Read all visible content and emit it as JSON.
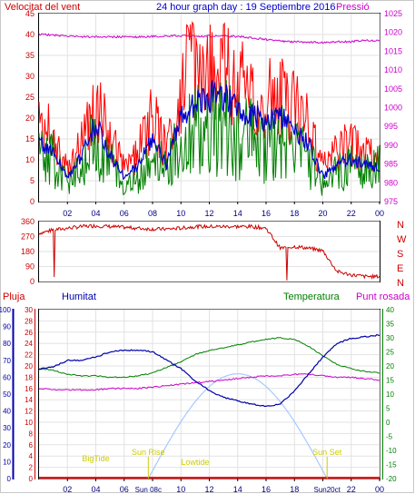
{
  "header": {
    "left_title": "Velocitat del vent",
    "center_title": "24 hour graph day : 19 Septiembre 2016",
    "right_title": "Pressió"
  },
  "bottom_labels": {
    "pluja": "Pluja",
    "humitat": "Humitat",
    "temperatura": "Temperatura",
    "punt_rosada": "Punt rosada"
  },
  "colors": {
    "wind_gust": "#ff0000",
    "wind_avg": "#0000cc",
    "wind_speed": "#008000",
    "pressure": "#cc00cc",
    "direction": "#cc0000",
    "humidity": "#0000aa",
    "temperature": "#008000",
    "dewpoint": "#cc00cc",
    "solar": "#a8c8ff",
    "astro": "#cccc00",
    "rain": "#ff0000",
    "title_red": "#cc0000",
    "title_blue": "#0000cc",
    "title_magenta": "#cc00cc"
  },
  "chart_data": [
    {
      "type": "line",
      "panel": "wind_pressure",
      "title": "Velocitat del vent",
      "x_ticks": [
        "02",
        "04",
        "06",
        "08",
        "10",
        "12",
        "14",
        "16",
        "18",
        "20",
        "22",
        "00"
      ],
      "left_axis": {
        "ylim": [
          0,
          45
        ],
        "ticks": [
          "0",
          "5",
          "10",
          "15",
          "20",
          "25",
          "30",
          "35",
          "40",
          "45"
        ]
      },
      "right_axis": {
        "label": "Pressió",
        "ylim": [
          975,
          1025
        ],
        "ticks": [
          "975",
          "980",
          "985",
          "990",
          "995",
          "1000",
          "1005",
          "1010",
          "1015",
          "1020",
          "1025"
        ]
      },
      "x_hours": [
        0,
        1,
        2,
        3,
        4,
        5,
        6,
        7,
        8,
        9,
        10,
        11,
        12,
        13,
        14,
        15,
        16,
        17,
        18,
        19,
        20,
        21,
        22,
        23,
        24
      ],
      "series": [
        {
          "key": "gust",
          "values": [
            18,
            16,
            8,
            15,
            24,
            15,
            8,
            12,
            20,
            12,
            26,
            30,
            30,
            31,
            28,
            26,
            24,
            26,
            22,
            18,
            8,
            12,
            14,
            12,
            10
          ]
        },
        {
          "key": "avg",
          "values": [
            14,
            12,
            6,
            11,
            19,
            11,
            6,
            9,
            15,
            9,
            20,
            24,
            25,
            25,
            22,
            21,
            19,
            21,
            17,
            14,
            6,
            9,
            10,
            9,
            8
          ]
        },
        {
          "key": "speed",
          "values": [
            10,
            10,
            4,
            9,
            14,
            9,
            3,
            6,
            11,
            7,
            15,
            17,
            17,
            18,
            16,
            15,
            12,
            14,
            12,
            10,
            4,
            7,
            8,
            7,
            8
          ]
        },
        {
          "key": "pressure",
          "values": [
            1019.5,
            1019.3,
            1019.0,
            1018.8,
            1018.8,
            1018.8,
            1018.8,
            1018.8,
            1018.9,
            1019.0,
            1019.1,
            1019.0,
            1019.0,
            1019.0,
            1018.9,
            1018.6,
            1018.1,
            1017.7,
            1017.5,
            1017.4,
            1017.3,
            1017.5,
            1017.6,
            1017.9,
            1017.8
          ]
        }
      ]
    },
    {
      "type": "line",
      "panel": "wind_direction",
      "y_ticks": [
        "0",
        "90",
        "180",
        "270",
        "360"
      ],
      "direction_labels": [
        "N",
        "W",
        "S",
        "E",
        "N"
      ],
      "ylim": [
        0,
        360
      ],
      "x_hours": [
        0,
        1,
        2,
        3,
        4,
        5,
        6,
        7,
        8,
        9,
        10,
        11,
        12,
        13,
        14,
        15,
        16,
        17,
        18,
        19,
        20,
        21,
        22,
        23,
        24
      ],
      "values": [
        290,
        310,
        320,
        330,
        335,
        330,
        325,
        320,
        315,
        315,
        320,
        330,
        330,
        330,
        330,
        330,
        320,
        200,
        210,
        200,
        185,
        60,
        40,
        30,
        30
      ]
    },
    {
      "type": "line",
      "panel": "humidity_temperature",
      "x_ticks": [
        "02",
        "04",
        "06",
        "08",
        "10",
        "12",
        "14",
        "16",
        "18",
        "20",
        "22",
        "00"
      ],
      "axes": {
        "humidity_ticks": [
          "0",
          "10",
          "20",
          "30",
          "40",
          "50",
          "60",
          "70",
          "80",
          "90",
          "100"
        ],
        "humidity_lim": [
          0,
          100
        ],
        "rain_ticks": [
          "0",
          "2",
          "4",
          "6",
          "8",
          "10",
          "12",
          "14",
          "16",
          "18",
          "20",
          "22",
          "24",
          "26",
          "28",
          "30"
        ],
        "rain_lim": [
          0,
          30
        ],
        "temp_ticks": [
          "-20",
          "-15",
          "-10",
          "-5",
          "0",
          "5",
          "10",
          "15",
          "20",
          "25",
          "30",
          "35",
          "40"
        ],
        "temp_lim": [
          -20,
          40
        ]
      },
      "x_hours": [
        0,
        1,
        2,
        3,
        4,
        5,
        6,
        7,
        8,
        9,
        10,
        11,
        12,
        13,
        14,
        15,
        16,
        17,
        18,
        19,
        20,
        21,
        22,
        23,
        24
      ],
      "series": [
        {
          "key": "humidity",
          "name": "Humitat",
          "values": [
            65,
            66,
            70,
            70,
            72,
            75,
            76,
            76,
            75,
            70,
            65,
            58,
            52,
            48,
            46,
            44,
            43,
            44,
            52,
            62,
            72,
            80,
            83,
            84,
            85
          ]
        },
        {
          "key": "temperature",
          "name": "Temperatura",
          "values": [
            19,
            18.5,
            17,
            16.5,
            16.5,
            16,
            16,
            16.5,
            17.5,
            19.5,
            21.5,
            24,
            25.5,
            26.5,
            27.5,
            28.5,
            29.5,
            30,
            29.5,
            27,
            23.5,
            20.5,
            19,
            18,
            17.5
          ]
        },
        {
          "key": "dewpoint",
          "name": "Punt rosada",
          "values": [
            12,
            11.5,
            11.5,
            11.5,
            11.5,
            12,
            12,
            12,
            12.5,
            13,
            13.5,
            14,
            14.5,
            15,
            15.5,
            16,
            16.5,
            16.5,
            17,
            17,
            16.5,
            16,
            16,
            15.5,
            15
          ]
        },
        {
          "key": "rain",
          "name": "Pluja",
          "values": [
            0,
            0,
            0,
            0,
            0,
            0,
            0,
            0,
            0,
            0,
            0,
            0,
            0,
            0,
            0,
            0,
            0,
            0,
            0,
            0,
            0,
            0,
            0,
            0,
            0
          ]
        }
      ],
      "solar_curve": {
        "start_hour": 7.7,
        "peak_hour": 14,
        "end_hour": 20.3,
        "peak_humidity_scale": 62
      },
      "astro": {
        "sun_rise": {
          "label": "Sun Rise",
          "hour": 7.7
        },
        "sun_set": {
          "label": "Sun Set",
          "hour": 20.3
        },
        "big_tide": {
          "label": "BigTide",
          "hour": 4
        },
        "low_tide": {
          "label": "Lowtide",
          "hour": 11
        },
        "bottom_labels": [
          "Sun 08c",
          "Sun20ct"
        ]
      }
    }
  ]
}
